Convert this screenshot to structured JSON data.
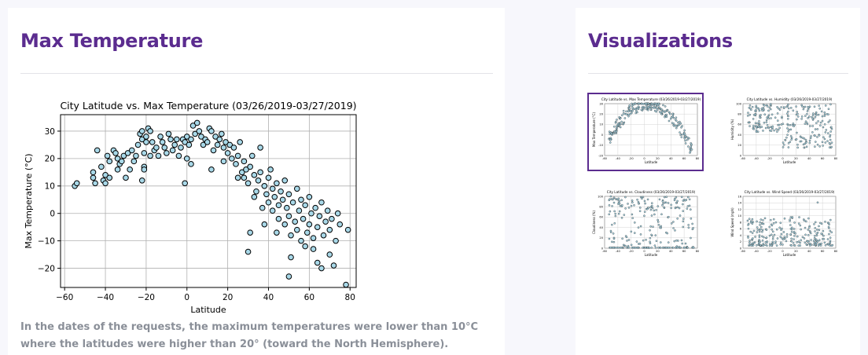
{
  "main": {
    "title": "Max Temperature",
    "caption": "In the dates of the requests, the maximum temperatures were lower than 10°C where the latitudes were higher than 20° (toward the North Hemisphere)."
  },
  "sidebar": {
    "title": "Visualizations",
    "thumbnails": [
      {
        "title": "City Latitude vs. Max Temperature (03/26/2019-03/27/2019)",
        "ylabel": "Max Temperature (°C)",
        "xlabel": "Latitude",
        "yticks": [
          "-20",
          "-10",
          "0",
          "10",
          "20",
          "30"
        ],
        "active": true
      },
      {
        "title": "City Latitude vs. Humidity (03/26/2019-03/27/2019)",
        "ylabel": "Humidity (%)",
        "xlabel": "Latitude",
        "yticks": [
          "0",
          "20",
          "40",
          "60",
          "80",
          "100"
        ],
        "active": false
      },
      {
        "title": "City Latitude vs. Cloudiness (03/26/2019-03/27/2019)",
        "ylabel": "Cloudiness (%)",
        "xlabel": "Latitude",
        "yticks": [
          "0",
          "20",
          "40",
          "60",
          "80",
          "100"
        ],
        "active": false
      },
      {
        "title": "City Latitude vs. Wind Speed (03/26/2019-03/27/2019)",
        "ylabel": "Wind Speed (mph)",
        "xlabel": "Latitude",
        "yticks": [
          "0",
          "2",
          "4",
          "6",
          "8",
          "10",
          "12",
          "14",
          "16"
        ],
        "active": false
      }
    ]
  },
  "colors": {
    "accent": "#5b2c8f",
    "marker_fill": "#a8d8e8",
    "marker_edge": "#000000"
  },
  "chart_data": [
    {
      "type": "scatter",
      "title": "City Latitude vs. Max Temperature (03/26/2019-03/27/2019)",
      "xlabel": "Latitude",
      "ylabel": "Max Temperature (°C)",
      "xlim": [
        -62,
        83
      ],
      "ylim": [
        -27,
        36
      ],
      "xticks": [
        -60,
        -40,
        -20,
        0,
        20,
        40,
        60,
        80
      ],
      "yticks": [
        -20,
        -10,
        0,
        10,
        20,
        30
      ],
      "grid": true,
      "points": [
        [
          -55,
          10
        ],
        [
          -54,
          11
        ],
        [
          -46,
          15
        ],
        [
          -46,
          13
        ],
        [
          -45,
          11
        ],
        [
          -44,
          23
        ],
        [
          -42,
          17
        ],
        [
          -41,
          12
        ],
        [
          -40,
          14
        ],
        [
          -39,
          21
        ],
        [
          -38,
          19
        ],
        [
          -38,
          13
        ],
        [
          -36,
          23
        ],
        [
          -35,
          22
        ],
        [
          -34,
          20
        ],
        [
          -34,
          16
        ],
        [
          -33,
          18
        ],
        [
          -32,
          19
        ],
        [
          -31,
          21
        ],
        [
          -30,
          13
        ],
        [
          -29,
          22
        ],
        [
          -28,
          16
        ],
        [
          -27,
          23
        ],
        [
          -26,
          19
        ],
        [
          -25,
          21
        ],
        [
          -24,
          25
        ],
        [
          -23,
          29
        ],
        [
          -22,
          30
        ],
        [
          -22,
          27
        ],
        [
          -21,
          22
        ],
        [
          -21,
          17
        ],
        [
          -20,
          26
        ],
        [
          -20,
          28
        ],
        [
          -19,
          31
        ],
        [
          -18,
          30
        ],
        [
          -18,
          21
        ],
        [
          -17,
          26
        ],
        [
          -16,
          23
        ],
        [
          -15,
          24
        ],
        [
          -14,
          21
        ],
        [
          -13,
          28
        ],
        [
          -12,
          26
        ],
        [
          -11,
          24
        ],
        [
          -10,
          22
        ],
        [
          -9,
          29
        ],
        [
          -8,
          27
        ],
        [
          -7,
          23
        ],
        [
          -6,
          25
        ],
        [
          -5,
          27
        ],
        [
          -4,
          21
        ],
        [
          -3,
          24
        ],
        [
          -2,
          27
        ],
        [
          -1,
          26
        ],
        [
          0,
          28
        ],
        [
          0,
          20
        ],
        [
          1,
          25
        ],
        [
          2,
          27
        ],
        [
          3,
          32
        ],
        [
          4,
          29
        ],
        [
          5,
          33
        ],
        [
          6,
          30
        ],
        [
          7,
          28
        ],
        [
          8,
          25
        ],
        [
          9,
          27
        ],
        [
          10,
          26
        ],
        [
          11,
          31
        ],
        [
          12,
          30
        ],
        [
          13,
          23
        ],
        [
          14,
          28
        ],
        [
          15,
          25
        ],
        [
          16,
          27
        ],
        [
          17,
          29
        ],
        [
          18,
          24
        ],
        [
          19,
          26
        ],
        [
          20,
          22
        ],
        [
          21,
          25
        ],
        [
          22,
          20
        ],
        [
          23,
          24
        ],
        [
          24,
          18
        ],
        [
          25,
          21
        ],
        [
          26,
          26
        ],
        [
          27,
          15
        ],
        [
          28,
          19
        ],
        [
          28,
          13
        ],
        [
          29,
          16
        ],
        [
          30,
          11
        ],
        [
          31,
          17
        ],
        [
          32,
          21
        ],
        [
          33,
          14
        ],
        [
          34,
          8
        ],
        [
          35,
          12
        ],
        [
          36,
          15
        ],
        [
          36,
          24
        ],
        [
          37,
          2
        ],
        [
          38,
          10
        ],
        [
          39,
          7
        ],
        [
          40,
          13
        ],
        [
          40,
          4
        ],
        [
          41,
          16
        ],
        [
          42,
          9
        ],
        [
          42,
          1
        ],
        [
          43,
          6
        ],
        [
          44,
          11
        ],
        [
          45,
          3
        ],
        [
          45,
          -2
        ],
        [
          46,
          8
        ],
        [
          47,
          5
        ],
        [
          48,
          12
        ],
        [
          48,
          -4
        ],
        [
          49,
          2
        ],
        [
          50,
          7
        ],
        [
          50,
          -1
        ],
        [
          51,
          -8
        ],
        [
          51,
          -16
        ],
        [
          52,
          4
        ],
        [
          53,
          -3
        ],
        [
          54,
          9
        ],
        [
          54,
          -6
        ],
        [
          55,
          1
        ],
        [
          56,
          -10
        ],
        [
          56,
          5
        ],
        [
          57,
          -2
        ],
        [
          58,
          3
        ],
        [
          58,
          -12
        ],
        [
          59,
          -7
        ],
        [
          60,
          6
        ],
        [
          60,
          -4
        ],
        [
          61,
          0
        ],
        [
          62,
          -13
        ],
        [
          62,
          -9
        ],
        [
          63,
          2
        ],
        [
          64,
          -5
        ],
        [
          64,
          -18
        ],
        [
          65,
          -1
        ],
        [
          66,
          4
        ],
        [
          66,
          -20
        ],
        [
          67,
          -8
        ],
        [
          68,
          -3
        ],
        [
          69,
          1
        ],
        [
          70,
          -15
        ],
        [
          70,
          -6
        ],
        [
          71,
          -2
        ],
        [
          72,
          -19
        ],
        [
          73,
          -10
        ],
        [
          74,
          0
        ],
        [
          75,
          -4
        ],
        [
          78,
          -26
        ],
        [
          79,
          -6
        ],
        [
          30,
          -14
        ],
        [
          31,
          -7
        ],
        [
          50,
          -23
        ],
        [
          -40,
          11
        ],
        [
          -22,
          12
        ],
        [
          -21,
          16
        ],
        [
          -1,
          11
        ],
        [
          2,
          18
        ],
        [
          12,
          16
        ],
        [
          18,
          19
        ],
        [
          25,
          13
        ],
        [
          33,
          6
        ],
        [
          38,
          -4
        ],
        [
          44,
          -7
        ]
      ]
    }
  ]
}
